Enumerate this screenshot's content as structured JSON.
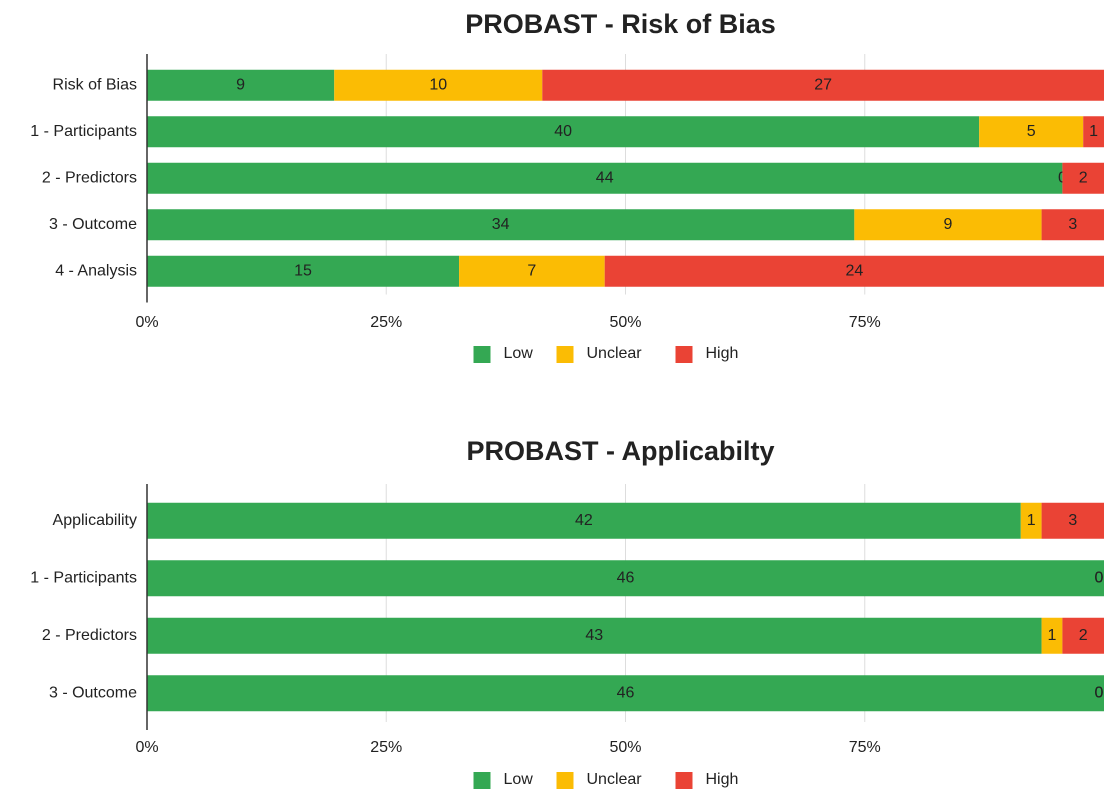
{
  "chart_data": [
    {
      "type": "bar",
      "stacked": "percent",
      "title": "PROBAST - Risk of Bias",
      "categories": [
        "Risk of Bias",
        "1 - Participants",
        "2 - Predictors",
        "3 - Outcome",
        "4 - Analysis"
      ],
      "series": [
        {
          "name": "Low",
          "color": "#34a853",
          "values": [
            9,
            40,
            44,
            34,
            15
          ]
        },
        {
          "name": "Unclear",
          "color": "#fbbc04",
          "values": [
            10,
            5,
            0,
            9,
            7
          ]
        },
        {
          "name": "High",
          "color": "#ea4335",
          "values": [
            27,
            1,
            2,
            3,
            24
          ]
        }
      ],
      "xlim": [
        0,
        100
      ],
      "xticks": [
        {
          "value": 0,
          "label": "0%"
        },
        {
          "value": 25,
          "label": "25%"
        },
        {
          "value": 50,
          "label": "50%"
        },
        {
          "value": 75,
          "label": "75%"
        }
      ],
      "grid": true,
      "legend": "bottom"
    },
    {
      "type": "bar",
      "stacked": "percent",
      "title": "PROBAST - Applicabilty",
      "categories": [
        "Applicability",
        "1 - Participants",
        "2 - Predictors",
        "3 - Outcome"
      ],
      "series": [
        {
          "name": "Low",
          "color": "#34a853",
          "values": [
            42,
            46,
            43,
            46
          ]
        },
        {
          "name": "Unclear",
          "color": "#fbbc04",
          "values": [
            1,
            0,
            1,
            0
          ]
        },
        {
          "name": "High",
          "color": "#ea4335",
          "values": [
            3,
            0,
            2,
            0
          ]
        }
      ],
      "xlim": [
        0,
        100
      ],
      "xticks": [
        {
          "value": 0,
          "label": "0%"
        },
        {
          "value": 25,
          "label": "25%"
        },
        {
          "value": 50,
          "label": "50%"
        },
        {
          "value": 75,
          "label": "75%"
        }
      ],
      "grid": true,
      "legend": "bottom"
    }
  ]
}
